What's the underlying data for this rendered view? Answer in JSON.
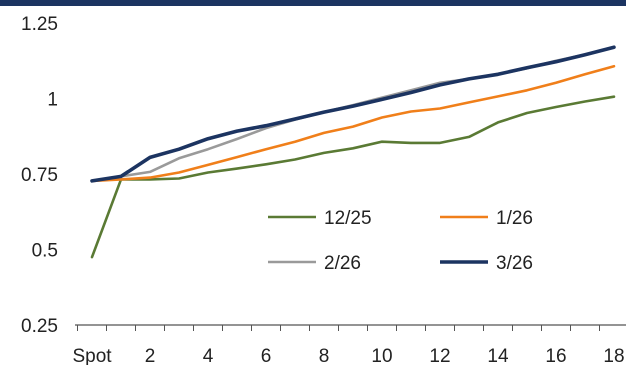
{
  "chart_data": {
    "type": "line",
    "x_labels": [
      "Spot",
      "",
      "2",
      "",
      "4",
      "",
      "6",
      "",
      "8",
      "",
      "10",
      "",
      "12",
      "",
      "14",
      "",
      "16",
      "",
      "18"
    ],
    "x_tick_labels": [
      "Spot",
      "2",
      "4",
      "6",
      "8",
      "10",
      "12",
      "14",
      "16",
      "18"
    ],
    "ylim": [
      0.25,
      1.25
    ],
    "y_ticks": [
      "0.25",
      "0.5",
      "0.75",
      "1",
      "1.25"
    ],
    "grid": false,
    "legend_position": "lower-right",
    "series": [
      {
        "name": "12/25",
        "color": "#5a7a34",
        "values": [
          0.475,
          0.732,
          0.732,
          0.735,
          0.755,
          0.768,
          0.782,
          0.798,
          0.82,
          0.835,
          0.857,
          0.853,
          0.853,
          0.873,
          0.921,
          0.952,
          0.972,
          0.99,
          1.006
        ]
      },
      {
        "name": "1/26",
        "color": "#f07f1a",
        "values": [
          0.727,
          0.732,
          0.738,
          0.755,
          0.78,
          0.806,
          0.832,
          0.857,
          0.886,
          0.907,
          0.937,
          0.957,
          0.967,
          0.987,
          1.007,
          1.027,
          1.052,
          1.08,
          1.107
        ]
      },
      {
        "name": "2/26",
        "color": "#9a9a9a",
        "values": [
          0.727,
          0.742,
          0.757,
          0.802,
          0.832,
          0.866,
          0.902,
          0.93,
          0.955,
          0.978,
          1.003,
          1.027,
          1.052,
          1.065,
          1.08,
          1.1,
          1.125,
          1.145,
          1.17
        ]
      },
      {
        "name": "3/26",
        "color": "#1c3461",
        "values": [
          0.727,
          0.742,
          0.805,
          0.832,
          0.867,
          0.892,
          0.91,
          0.932,
          0.955,
          0.975,
          0.997,
          1.02,
          1.045,
          1.065,
          1.08,
          1.102,
          1.122,
          1.145,
          1.17
        ]
      }
    ]
  },
  "colors": {
    "top_bar": "#1c3461",
    "axis": "#555555"
  }
}
